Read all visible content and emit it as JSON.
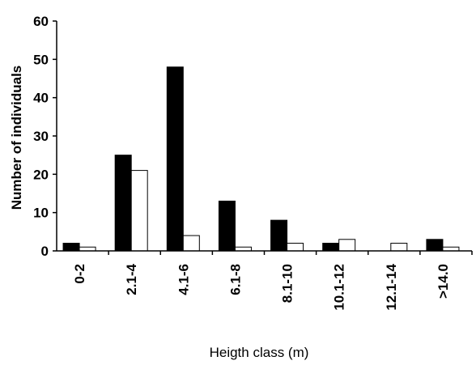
{
  "chart_data": {
    "type": "bar",
    "title": "",
    "xlabel": "Heigth class (m)",
    "ylabel": "Number of individuals",
    "ylim": [
      0,
      60
    ],
    "yticks": [
      0,
      10,
      20,
      30,
      40,
      50,
      60
    ],
    "categories": [
      "0-2",
      "2.1-4",
      "4.1-6",
      "6.1-8",
      "8.1-10",
      "10.1-12",
      "12.1-14",
      ">14.0"
    ],
    "series": [
      {
        "color": "#000000",
        "values": [
          2,
          25,
          48,
          13,
          8,
          2,
          0,
          3
        ]
      },
      {
        "color": "#ffffff",
        "values": [
          1,
          21,
          4,
          1,
          2,
          3,
          2,
          1
        ]
      }
    ],
    "grid": false,
    "legend": "none"
  }
}
